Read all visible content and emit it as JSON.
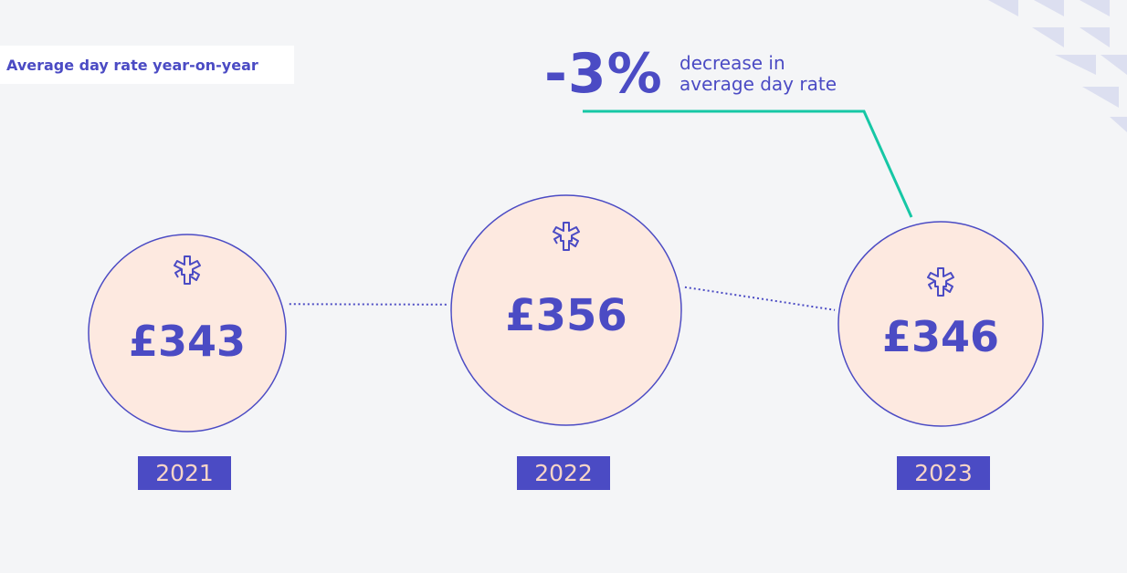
{
  "title": "Average day rate year-on-year",
  "callout": {
    "value": "-3%",
    "line1": "decrease in",
    "line2": "average day rate"
  },
  "colors": {
    "accent": "#4b4bc4",
    "circle_fill": "#fde9e0",
    "badge_text": "#f8d5c6",
    "connector": "#16c7a5",
    "background": "#f4f5f7"
  },
  "icon": "medical-staff-icon",
  "chart_data": {
    "type": "bubble",
    "title": "Average day rate year-on-year",
    "unit": "£",
    "categories": [
      "2021",
      "2022",
      "2023"
    ],
    "values": [
      343,
      356,
      346
    ],
    "value_labels": [
      "£343",
      "£356",
      "£346"
    ],
    "annotation": "-3% decrease in average day rate"
  }
}
